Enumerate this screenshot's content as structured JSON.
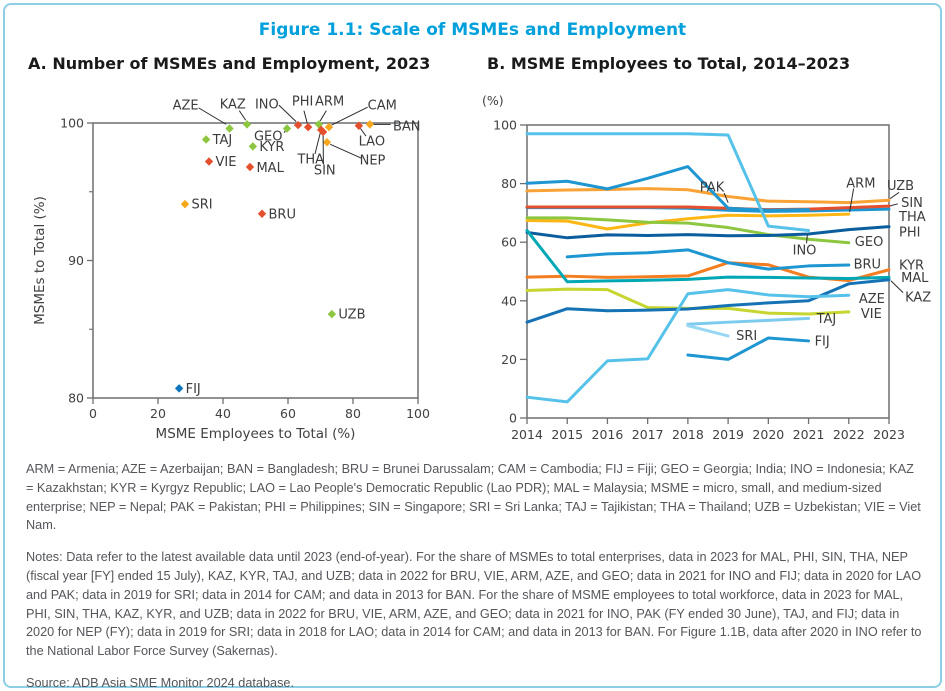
{
  "figure": {
    "title": "Figure 1.1: Scale of MSMEs and Employment"
  },
  "panel_a": {
    "subtitle": "A. Number of MSMEs and Employment, 2023"
  },
  "panel_b": {
    "subtitle": "B. MSME Employees to Total, 2014–2023",
    "unit_label": "(%)"
  },
  "colors": {
    "green": "#8dc63f",
    "red": "#e4502e",
    "amber": "#f5a81c",
    "blue_fiji": "#0e76bc",
    "skyblue": "#56c2e9",
    "blue": "#1e96d2",
    "navy": "#0b5d9e",
    "blue_kaz": "#1573b5",
    "uzb_amber": "#f9a236",
    "arm_yellow": "#fdb714",
    "lime": "#c6d52f",
    "orange": "#f47d20",
    "teal": "#00a7b5",
    "tajblue": "#7ccbef",
    "sriblue": "#97d7f4",
    "frame": "#6d6e71",
    "tick_text": "#414042",
    "label_text": "#3b3c3e",
    "leader": "#2a2a2a"
  },
  "chart_data": [
    {
      "type": "scatter",
      "title": "A. Number of MSMEs and Employment, 2023",
      "xlabel": "MSME Employees to Total (%)",
      "ylabel": "MSMEs to Total (%)",
      "xlim": [
        0,
        100
      ],
      "ylim": [
        80,
        100
      ],
      "xticks": [
        0,
        20,
        40,
        60,
        80,
        100
      ],
      "yticks": [
        80,
        90,
        100
      ],
      "yticks_minor": [
        85,
        95
      ],
      "grid": false,
      "points": [
        {
          "code": "AZE",
          "x": 42,
          "y": 99.6,
          "color": "green",
          "label": {
            "x": 28.5,
            "y": 101.3,
            "anchor": "middle"
          },
          "leader": [
            [
              32.5,
              101.1
            ],
            [
              41,
              99.9
            ]
          ]
        },
        {
          "code": "KAZ",
          "x": 47.4,
          "y": 99.9,
          "color": "green",
          "label": {
            "x": 43,
            "y": 101.4,
            "anchor": "middle"
          },
          "leader": [
            [
              45,
              100.9
            ],
            [
              47,
              100.2
            ]
          ]
        },
        {
          "code": "INO",
          "x": 63.1,
          "y": 99.85,
          "color": "red",
          "label": {
            "x": 53.5,
            "y": 101.4,
            "anchor": "middle"
          },
          "leader": [
            [
              57.2,
              101.3
            ],
            [
              62.5,
              100.1
            ]
          ]
        },
        {
          "code": "PHI",
          "x": 66.2,
          "y": 99.7,
          "color": "red",
          "label": {
            "x": 64.5,
            "y": 101.6,
            "anchor": "middle"
          },
          "leader": [
            [
              64.9,
              100.9
            ],
            [
              65.9,
              100
            ]
          ]
        },
        {
          "code": "ARM",
          "x": 69.5,
          "y": 99.9,
          "color": "green",
          "label": {
            "x": 72.8,
            "y": 101.6,
            "anchor": "middle"
          },
          "leader": [
            [
              71.8,
              100.9
            ],
            [
              69.9,
              100.15
            ]
          ]
        },
        {
          "code": "CAM",
          "x": 72.6,
          "y": 99.7,
          "color": "amber",
          "label": {
            "x": 89,
            "y": 101.3,
            "anchor": "middle"
          },
          "leader": [
            [
              84.5,
              101.15
            ],
            [
              73.4,
              99.85
            ]
          ]
        },
        {
          "code": "BAN",
          "x": 85.2,
          "y": 99.9,
          "color": "amber",
          "label": {
            "x": 92.3,
            "y": 99.8,
            "anchor": "start"
          },
          "leader": [
            [
              91.6,
              99.9
            ],
            [
              86.2,
              99.9
            ]
          ]
        },
        {
          "code": "LAO",
          "x": 81.8,
          "y": 99.8,
          "color": "red",
          "label": {
            "x": 85.8,
            "y": 98.7,
            "anchor": "middle"
          },
          "leader": [
            [
              84,
              99.05
            ],
            [
              82.3,
              99.6
            ]
          ]
        },
        {
          "code": "NEP",
          "x": 72,
          "y": 98.6,
          "color": "amber",
          "label": {
            "x": 86,
            "y": 97.3,
            "anchor": "middle"
          },
          "leader": [
            [
              82.5,
              97.45
            ],
            [
              73,
              98.45
            ]
          ]
        },
        {
          "code": "THA",
          "x": 70.2,
          "y": 99.5,
          "color": "red",
          "label": {
            "x": 67,
            "y": 97.4,
            "anchor": "middle"
          },
          "leader": [
            [
              68.3,
              97.75
            ],
            [
              69.9,
              99.25
            ]
          ]
        },
        {
          "code": "SIN",
          "x": 70.8,
          "y": 99.35,
          "color": "red",
          "label": {
            "x": 71.3,
            "y": 96.6,
            "anchor": "middle"
          },
          "leader": [
            [
              70.9,
              97.0
            ],
            [
              70.8,
              99.1
            ]
          ]
        },
        {
          "code": "GEO",
          "x": 59.7,
          "y": 99.6,
          "color": "green",
          "label": {
            "x": 58.3,
            "y": 99.05,
            "anchor": "end"
          },
          "leader": [
            [
              58.8,
              99.3
            ],
            [
              59.4,
              99.5
            ]
          ]
        },
        {
          "code": "KYR",
          "x": 49.2,
          "y": 98.3,
          "color": "green",
          "label": {
            "x": 51.2,
            "y": 98.3,
            "anchor": "start"
          }
        },
        {
          "code": "TAJ",
          "x": 34.8,
          "y": 98.8,
          "color": "green",
          "label": {
            "x": 36.8,
            "y": 98.8,
            "anchor": "start"
          }
        },
        {
          "code": "VIE",
          "x": 35.7,
          "y": 97.2,
          "color": "red",
          "label": {
            "x": 37.7,
            "y": 97.2,
            "anchor": "start"
          }
        },
        {
          "code": "MAL",
          "x": 48.3,
          "y": 96.8,
          "color": "red",
          "label": {
            "x": 50.3,
            "y": 96.75,
            "anchor": "start"
          }
        },
        {
          "code": "SRI",
          "x": 28.3,
          "y": 94.1,
          "color": "amber",
          "label": {
            "x": 30.3,
            "y": 94.1,
            "anchor": "start"
          }
        },
        {
          "code": "BRU",
          "x": 52,
          "y": 93.4,
          "color": "red",
          "label": {
            "x": 54,
            "y": 93.4,
            "anchor": "start"
          }
        },
        {
          "code": "UZB",
          "x": 73.5,
          "y": 86.1,
          "color": "green",
          "label": {
            "x": 75.5,
            "y": 86.1,
            "anchor": "start"
          }
        },
        {
          "code": "FIJ",
          "x": 26.5,
          "y": 80.7,
          "color": "blue_fiji",
          "label": {
            "x": 28.5,
            "y": 80.7,
            "anchor": "start"
          }
        }
      ]
    },
    {
      "type": "line",
      "title": "B. MSME Employees to Total, 2014–2023",
      "ylabel": "(%)",
      "x": [
        2014,
        2015,
        2016,
        2017,
        2018,
        2019,
        2020,
        2021,
        2022,
        2023
      ],
      "xlim": [
        2014,
        2023
      ],
      "ylim": [
        0,
        100
      ],
      "yticks": [
        0,
        20,
        40,
        60,
        80,
        100
      ],
      "grid": false,
      "legend_position": "inline-labels",
      "series": [
        {
          "name": "UZB",
          "color": "uzb_amber",
          "start": 2014,
          "values": [
            77.5,
            77.8,
            78,
            78.3,
            77.9,
            75.6,
            74,
            73.8,
            73.5,
            74.3
          ],
          "label": {
            "x": 2022.95,
            "y": 79.3,
            "anchor": "start"
          },
          "leader": [
            [
              2023.25,
              77
            ],
            [
              2023.03,
              74.9
            ]
          ]
        },
        {
          "name": "SIN",
          "color": "blue",
          "start": 2014,
          "values": [
            71.8,
            71.8,
            71.8,
            71.8,
            71.6,
            70.9,
            70.5,
            70.7,
            71,
            71.3
          ],
          "label": {
            "x": 2023.3,
            "y": 73.5,
            "anchor": "start"
          },
          "leader": [
            [
              2023.22,
              73.1
            ],
            [
              2023.03,
              72.4
            ]
          ]
        },
        {
          "name": "THA",
          "color": "red",
          "start": 2014,
          "values": [
            72,
            72,
            72,
            72,
            72,
            71.6,
            71.1,
            71.3,
            71.8,
            72.3
          ],
          "label": {
            "x": 2023.25,
            "y": 68.8,
            "anchor": "start"
          }
        },
        {
          "name": "PAK",
          "color": "blue",
          "start": 2014,
          "values": [
            80.1,
            80.8,
            78.2,
            81.8,
            85.8,
            71.6,
            70.9,
            71.1
          ],
          "label": {
            "x": 2018.6,
            "y": 78.8,
            "anchor": "middle"
          },
          "leader": [
            [
              2018.9,
              76.8
            ],
            [
              2019,
              73.5
            ]
          ]
        },
        {
          "name": "ARM",
          "color": "arm_yellow",
          "start": 2014,
          "values": [
            67.4,
            67.2,
            64.5,
            66.6,
            68,
            69.2,
            69,
            69.2,
            69.6
          ],
          "label": {
            "x": 2022.3,
            "y": 80.2,
            "anchor": "middle"
          },
          "leader": [
            [
              2022.12,
              78.3
            ],
            [
              2022.02,
              70.3
            ]
          ]
        },
        {
          "name": "GEO",
          "color": "green",
          "start": 2014,
          "values": [
            68.3,
            68.3,
            67.6,
            66.8,
            66.5,
            65,
            62.6,
            61,
            59.8
          ],
          "label": {
            "x": 2022.15,
            "y": 60.2,
            "anchor": "start"
          }
        },
        {
          "name": "PHI",
          "color": "navy",
          "start": 2014,
          "values": [
            63.3,
            61.5,
            62.5,
            62.3,
            62.6,
            62.2,
            62.3,
            62.8,
            64.3,
            65.3
          ],
          "label": {
            "x": 2023.25,
            "y": 63.4,
            "anchor": "start"
          }
        },
        {
          "name": "KYR",
          "color": "orange",
          "start": 2014,
          "values": [
            48.1,
            48.4,
            48,
            48.2,
            48.5,
            53,
            52.3,
            48.1,
            46.9,
            50.6
          ],
          "label": {
            "x": 2023.25,
            "y": 52.3,
            "anchor": "start"
          }
        },
        {
          "name": "MAL",
          "color": "teal",
          "start": 2014,
          "values": [
            64,
            46.5,
            46.8,
            47,
            47.3,
            48.1,
            48,
            47.8,
            47.6,
            48
          ],
          "label": {
            "x": 2023.3,
            "y": 47.9,
            "anchor": "start"
          }
        },
        {
          "name": "BRU",
          "color": "blue",
          "start": 2015,
          "values": [
            55,
            56,
            56.4,
            57.4,
            53,
            50.8,
            51.9,
            52.2
          ],
          "label": {
            "x": 2022.12,
            "y": 52.6,
            "anchor": "start"
          }
        },
        {
          "name": "VIE",
          "color": "lime",
          "start": 2014,
          "values": [
            43.5,
            44,
            43.8,
            37.7,
            37.4,
            37.4,
            35.8,
            35.5,
            36.2
          ],
          "label": {
            "x": 2022.3,
            "y": 35.6,
            "anchor": "start"
          }
        },
        {
          "name": "KAZ",
          "color": "blue_kaz",
          "start": 2014,
          "values": [
            32.7,
            37.3,
            36.6,
            36.8,
            37.2,
            38.4,
            39.3,
            40,
            45.8,
            47.2
          ],
          "label": {
            "x": 2023.4,
            "y": 41.3,
            "anchor": "start"
          },
          "leader": [
            [
              2023.35,
              42.8
            ],
            [
              2023.05,
              46.8
            ]
          ]
        },
        {
          "name": "AZE",
          "color": "skyblue",
          "start": 2014,
          "values": [
            7.1,
            5.5,
            19.5,
            20.2,
            42.4,
            43.8,
            42,
            41.4,
            41.9
          ],
          "label": {
            "x": 2022.25,
            "y": 40.8,
            "anchor": "start"
          }
        },
        {
          "name": "TAJ",
          "color": "tajblue",
          "start": 2018,
          "values": [
            32,
            32.7,
            33.3,
            34
          ],
          "label": {
            "x": 2021.2,
            "y": 33.9,
            "anchor": "start"
          }
        },
        {
          "name": "SRI",
          "color": "sriblue",
          "start": 2018,
          "values": [
            31.5,
            28
          ],
          "label": {
            "x": 2019.2,
            "y": 28.2,
            "anchor": "start"
          }
        },
        {
          "name": "FIJ",
          "color": "blue",
          "start": 2018,
          "values": [
            21.5,
            20,
            27.3,
            26.3
          ],
          "label": {
            "x": 2021.15,
            "y": 26.2,
            "anchor": "start"
          }
        },
        {
          "name": "INO",
          "color": "skyblue",
          "start": 2014,
          "values": [
            97,
            97,
            97,
            97,
            97,
            96.6,
            65.5,
            64
          ],
          "label": {
            "x": 2020.9,
            "y": 57.3,
            "anchor": "middle"
          },
          "leader": [
            [
              2020.95,
              59.6
            ],
            [
              2020.97,
              62.6
            ]
          ]
        }
      ]
    }
  ],
  "footer": {
    "abbreviations": "ARM = Armenia; AZE = Azerbaijan; BAN = Bangladesh; BRU = Brunei Darussalam; CAM = Cambodia; FIJ = Fiji; GEO = Georgia; India; INO = Indonesia; KAZ = Kazakhstan; KYR = Kyrgyz Republic; LAO = Lao People's Democratic Republic (Lao PDR); MAL = Malaysia; MSME = micro, small, and medium-sized enterprise; NEP = Nepal; PAK = Pakistan; PHI = Philippines; SIN = Singapore; SRI = Sri Lanka; TAJ = Tajikistan; THA = Thailand; UZB = Uzbekistan; VIE = Viet Nam.",
    "notes": "Notes: Data refer to the latest available data until 2023 (end-of-year). For the share of MSMEs to total enterprises, data in 2023 for MAL, PHI, SIN, THA, NEP (fiscal year [FY] ended 15 July), KAZ, KYR, TAJ, and UZB; data in 2022 for BRU, VIE, ARM, AZE, and GEO; data in 2021 for INO and FIJ; data in 2020 for LAO and PAK; data in 2019 for SRI; data in 2014 for CAM; and data in 2013 for BAN. For the share of MSME employees to total workforce, data in 2023 for MAL, PHI, SIN, THA, KAZ, KYR, and UZB; data in 2022 for BRU, VIE, ARM, AZE, and GEO; data in 2021 for INO, PAK (FY ended 30 June), TAJ, and FIJ; data in 2020 for NEP (FY); data in 2019 for SRI; data in 2018 for LAO; data in 2014 for CAM; and data in 2013 for BAN. For Figure 1.1B, data after 2020 in INO refer to the National Labor Force Survey (Sakernas).",
    "source": "Source: ADB Asia SME Monitor 2024 database."
  }
}
